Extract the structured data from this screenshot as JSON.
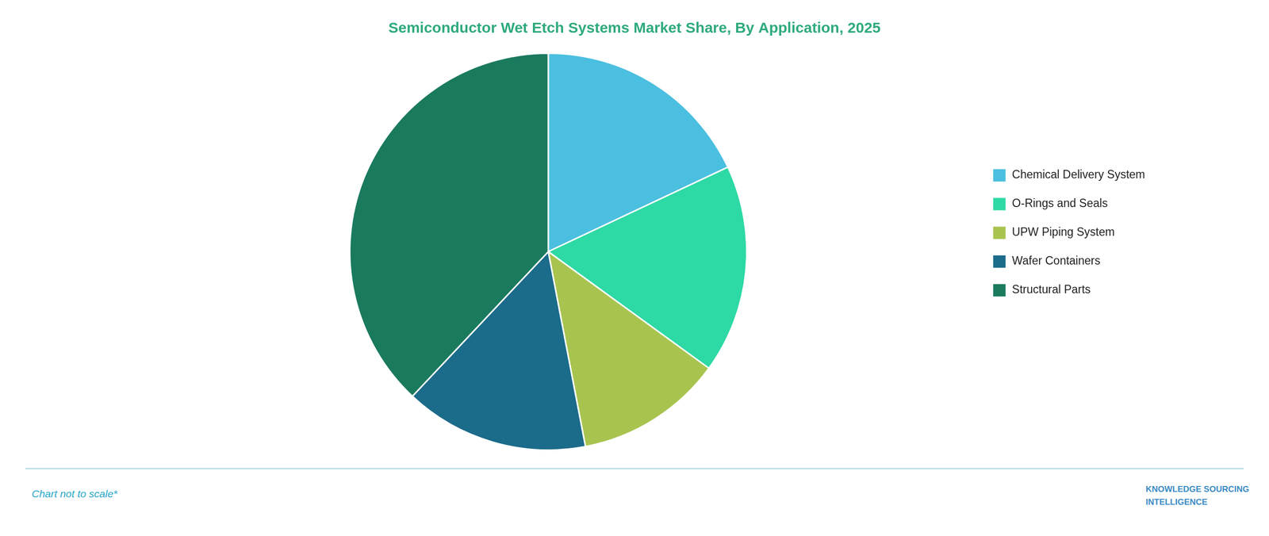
{
  "chart_data": {
    "type": "pie",
    "title": "Semiconductor Wet Etch Systems Market Share, By Application, 2025",
    "categories": [
      "Chemical Delivery System",
      "O-Rings and Seals",
      "UPW Piping System",
      "Wafer Containers",
      "Structural Parts"
    ],
    "values": [
      18,
      17,
      12,
      15,
      38
    ],
    "colors": [
      "#4BBFE0",
      "#2DD9A4",
      "#A8C44F",
      "#1B6B8A",
      "#1A7A5E"
    ],
    "legend": "right",
    "annotations": [
      "Chart not to scale*",
      "KNOWLEDGE SOURCING\nINTELLIGENCE"
    ]
  }
}
